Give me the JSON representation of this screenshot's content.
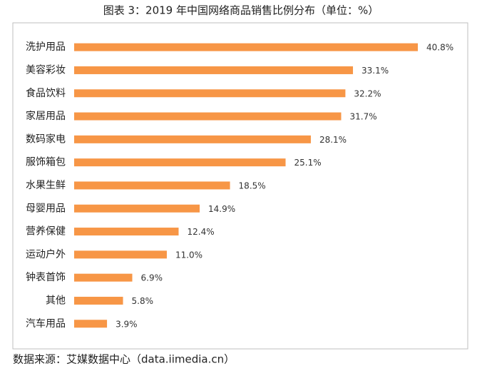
{
  "chart_data": {
    "type": "bar",
    "orientation": "horizontal",
    "title": "图表 3：2019 年中国网络商品销售比例分布（单位：%）",
    "categories": [
      "洗护用品",
      "美容彩妆",
      "食品饮料",
      "家居用品",
      "数码家电",
      "服饰箱包",
      "水果生鲜",
      "母婴用品",
      "营养保健",
      "运动户外",
      "钟表首饰",
      "其他",
      "汽车用品"
    ],
    "values": [
      40.8,
      33.1,
      32.2,
      31.7,
      28.1,
      25.1,
      18.5,
      14.9,
      12.4,
      11.0,
      6.9,
      5.8,
      3.9
    ],
    "value_labels": [
      "40.8%",
      "33.1%",
      "32.2%",
      "31.7%",
      "28.1%",
      "25.1%",
      "18.5%",
      "14.9%",
      "12.4%",
      "11.0%",
      "6.9%",
      "5.8%",
      "3.9%"
    ],
    "color": "#f79646",
    "source": "数据来源：艾媒数据中心（data.iimedia.cn）"
  }
}
